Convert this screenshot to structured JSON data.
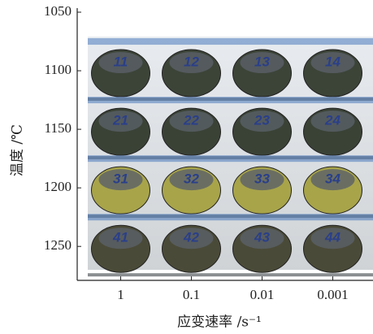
{
  "chart_data": {
    "type": "photo-grid",
    "ylabel": "温度 /℃",
    "xlabel": "应变速率 /s⁻¹",
    "categories": [
      "1",
      "0.1",
      "0.01",
      "0.001"
    ],
    "ylim": [
      1050,
      1279
    ],
    "yticks": [
      1050,
      1100,
      1150,
      1200,
      1250
    ],
    "rows": [
      1100,
      1150,
      1200,
      1250
    ],
    "row_colors": [
      "#3c4438",
      "#3a4236",
      "#a8a44a",
      "#4a4a38"
    ],
    "specimens": [
      [
        "11",
        "12",
        "13",
        "14"
      ],
      [
        "21",
        "22",
        "23",
        "24"
      ],
      [
        "31",
        "32",
        "33",
        "34"
      ],
      [
        "41",
        "42",
        "43",
        "44"
      ]
    ]
  }
}
